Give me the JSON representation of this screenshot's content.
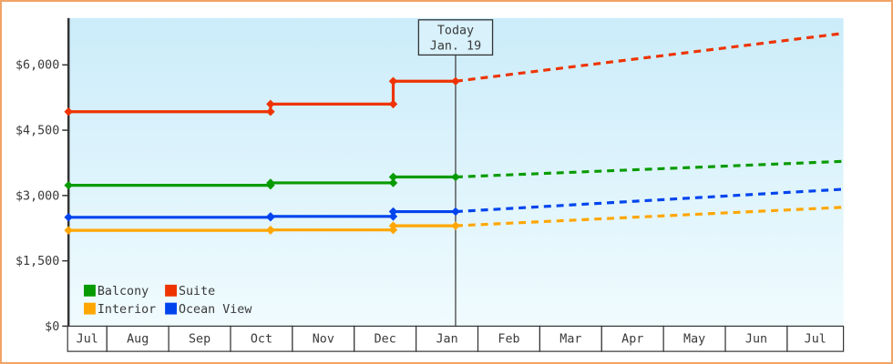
{
  "frame": {
    "border_color": "#f0a467",
    "background": "#ffffff"
  },
  "chart_data": {
    "type": "line",
    "title": "",
    "description": "Cabin price history (solid, stepped) and forecast (dashed) by cabin type",
    "plot_bg_top": "#cbecfa",
    "plot_bg_bottom": "#f0fbfe",
    "axis_color": "#333333",
    "text_color": "#3a3a3a",
    "grid": false,
    "ylim": [
      0,
      7075
    ],
    "y_ticks": [
      {
        "label": "$0",
        "value": 0
      },
      {
        "label": "$1,500",
        "value": 1500
      },
      {
        "label": "$3,000",
        "value": 3000
      },
      {
        "label": "$4,500",
        "value": 4500
      },
      {
        "label": "$6,000",
        "value": 6000
      }
    ],
    "x_months": [
      "Jul",
      "Aug",
      "Sep",
      "Oct",
      "Nov",
      "Dec",
      "Jan",
      "Feb",
      "Mar",
      "Apr",
      "May",
      "Jun",
      "Jul"
    ],
    "today": {
      "label_line1": "Today",
      "label_line2": "Jan. 19",
      "x_frac": 0.4995,
      "box_fill": "#d8f1fb"
    },
    "series": [
      {
        "name": "Balcony",
        "color": "#089b00",
        "snapshots": [
          {
            "x_frac": 0.0,
            "value": 3235
          },
          {
            "x_frac": 0.2607,
            "value": 3290
          },
          {
            "x_frac": 0.419,
            "value": 3425
          }
        ],
        "value_at_today": 3425,
        "forecast_end_value": 3785
      },
      {
        "name": "Suite",
        "color": "#ee3300",
        "snapshots": [
          {
            "x_frac": 0.0,
            "value": 4925
          },
          {
            "x_frac": 0.2607,
            "value": 5100
          },
          {
            "x_frac": 0.419,
            "value": 5625
          }
        ],
        "value_at_today": 5625,
        "forecast_end_value": 6725
      },
      {
        "name": "Interior",
        "color": "#ffa600",
        "snapshots": [
          {
            "x_frac": 0.0,
            "value": 2200
          },
          {
            "x_frac": 0.2607,
            "value": 2210
          },
          {
            "x_frac": 0.419,
            "value": 2305
          }
        ],
        "value_at_today": 2305,
        "forecast_end_value": 2730
      },
      {
        "name": "Ocean View",
        "color": "#0044ee",
        "snapshots": [
          {
            "x_frac": 0.0,
            "value": 2500
          },
          {
            "x_frac": 0.2607,
            "value": 2520
          },
          {
            "x_frac": 0.419,
            "value": 2630
          }
        ],
        "value_at_today": 2630,
        "forecast_end_value": 3145
      }
    ],
    "legend": {
      "position": "bottom-left-inside-plot",
      "rows": [
        [
          "Balcony",
          "Suite"
        ],
        [
          "Interior",
          "Ocean View"
        ]
      ]
    }
  }
}
